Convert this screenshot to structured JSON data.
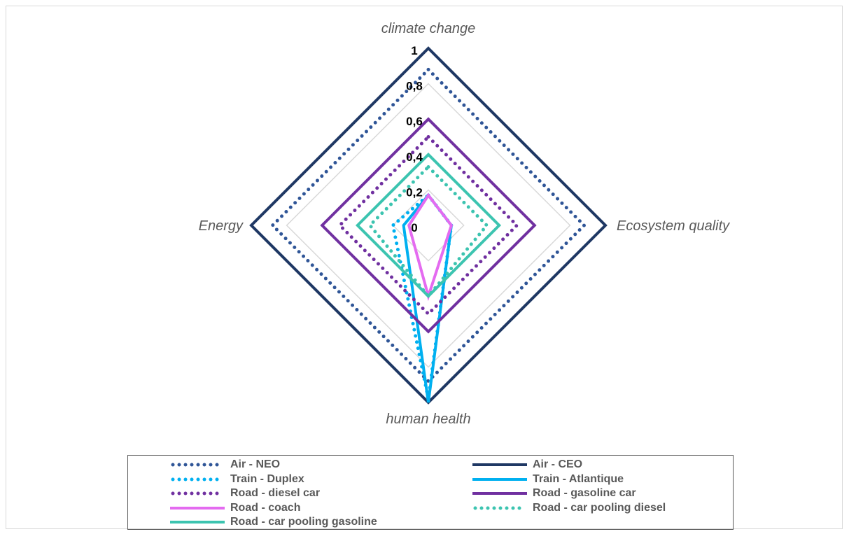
{
  "chart_data": {
    "type": "radar",
    "axes": [
      "climate change",
      "Ecosystem quality",
      "human health",
      "Energy"
    ],
    "ticks": [
      "0",
      "0,2",
      "0,4",
      "0,6",
      "0,8",
      "1"
    ],
    "range": [
      0,
      1
    ],
    "grid": true,
    "legend_position": "bottom",
    "series": [
      {
        "name": "Air - NEO",
        "color": "#2f5597",
        "style": "dotted",
        "values": [
          0.88,
          0.88,
          0.88,
          0.88
        ]
      },
      {
        "name": "Air - CEO",
        "color": "#1f3864",
        "style": "solid",
        "values": [
          1.0,
          1.0,
          1.0,
          1.0
        ]
      },
      {
        "name": "Train - Duplex",
        "color": "#00b0f0",
        "style": "dotted",
        "values": [
          0.17,
          0.13,
          0.98,
          0.2
        ]
      },
      {
        "name": "Train - Atlantique",
        "color": "#00b0f0",
        "style": "solid",
        "values": [
          0.17,
          0.13,
          1.0,
          0.14
        ]
      },
      {
        "name": "Road - diesel car",
        "color": "#7030a0",
        "style": "dotted",
        "values": [
          0.5,
          0.5,
          0.5,
          0.5
        ]
      },
      {
        "name": "Road - gasoline car",
        "color": "#7030a0",
        "style": "solid",
        "values": [
          0.6,
          0.6,
          0.6,
          0.6
        ]
      },
      {
        "name": "Road - coach",
        "color": "#e46bf0",
        "style": "solid",
        "values": [
          0.17,
          0.13,
          0.4,
          0.11
        ]
      },
      {
        "name": "Road - car pooling diesel",
        "color": "#3cc4b0",
        "style": "dotted",
        "values": [
          0.33,
          0.33,
          0.4,
          0.33
        ]
      },
      {
        "name": "Road - car pooling gasoline",
        "color": "#3cc4b0",
        "style": "solid",
        "values": [
          0.4,
          0.4,
          0.4,
          0.4
        ]
      }
    ]
  }
}
